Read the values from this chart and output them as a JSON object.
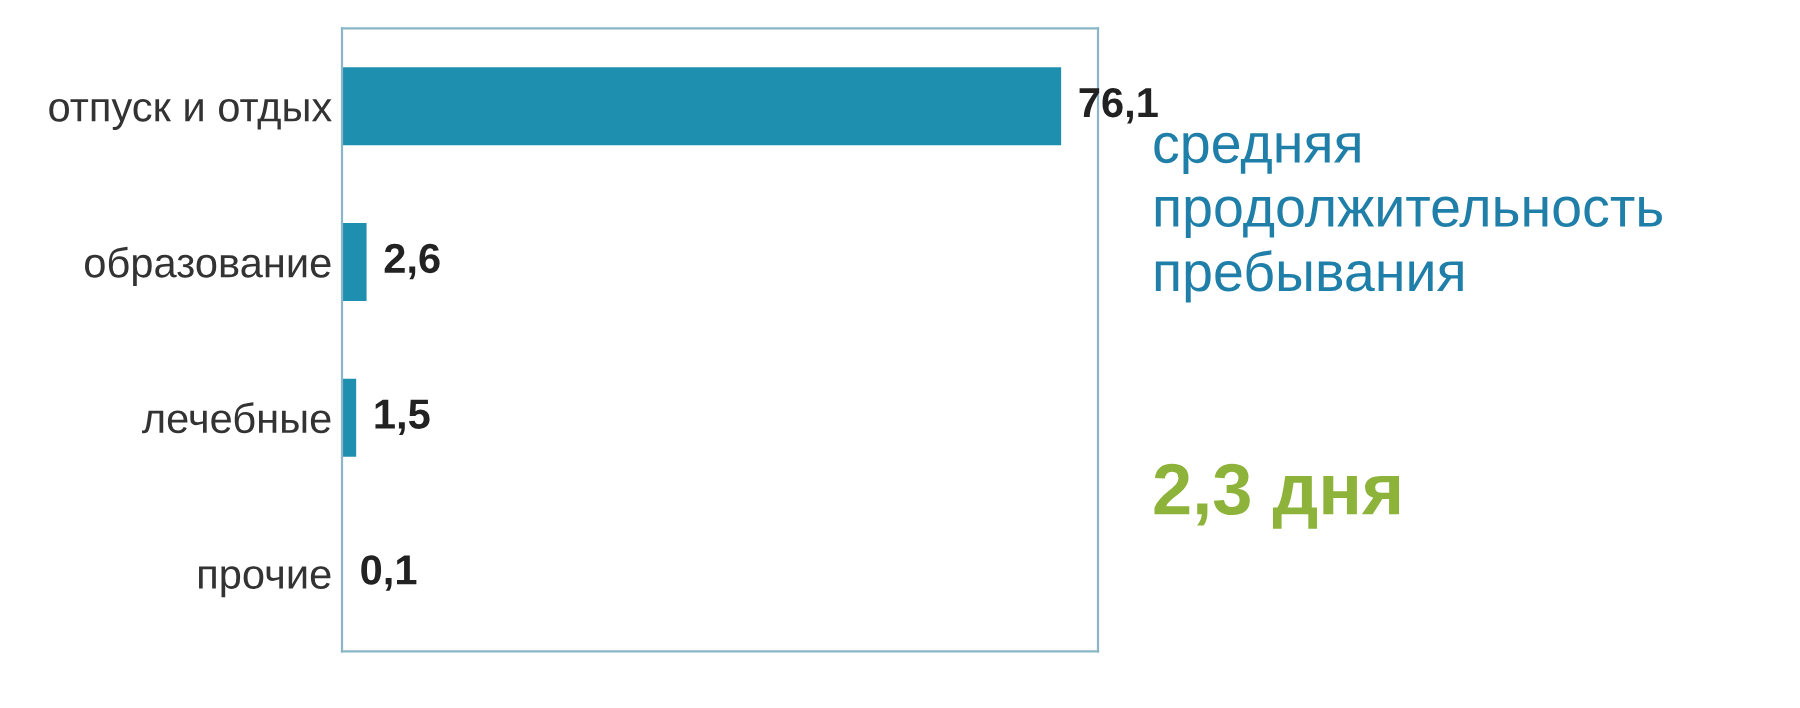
{
  "chart_data": {
    "type": "bar",
    "orientation": "horizontal",
    "categories": [
      "отпуск и отдых",
      "образование",
      "лечебные",
      "прочие"
    ],
    "values": [
      76.1,
      2.6,
      1.5,
      0.1
    ],
    "value_labels": [
      "76,1",
      "2,6",
      "1,5",
      "0,1"
    ],
    "color": "#1f8fb0",
    "xlim": [
      0,
      80
    ],
    "tick_labels": "y",
    "grid": false,
    "annotations": [
      "средняя\nпродолжительность\nпребывания",
      "2,3 дня"
    ]
  }
}
